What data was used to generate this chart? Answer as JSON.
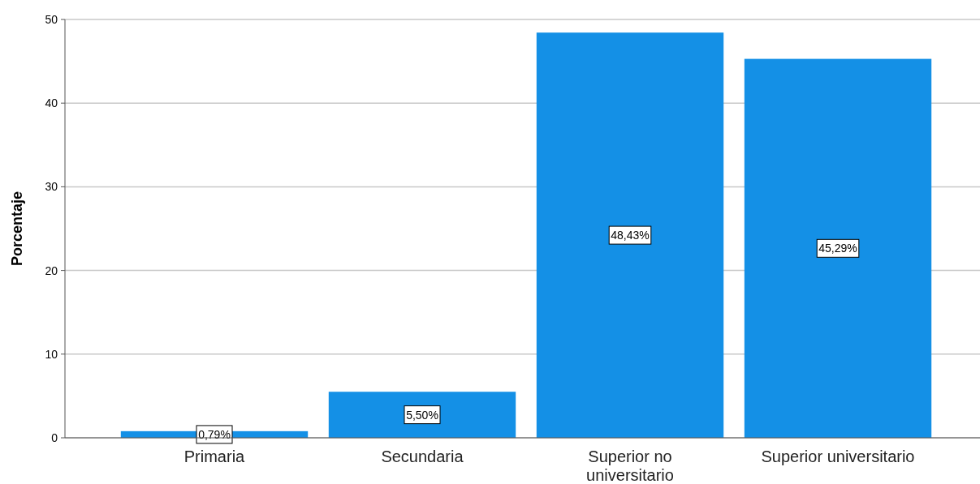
{
  "chart_data": {
    "type": "bar",
    "ylabel": "Porcentaje",
    "categories": [
      "Primaria",
      "Secundaria",
      "Superior no universitario",
      "Superior universitario"
    ],
    "values": [
      0.79,
      5.5,
      48.43,
      45.29
    ],
    "value_labels": [
      "0,79%",
      "5,50%",
      "48,43%",
      "45,29%"
    ],
    "color": "#1490e6",
    "ylim": [
      0,
      50
    ],
    "yticks": [
      0,
      10,
      20,
      30,
      40,
      50
    ],
    "grid": "y"
  }
}
